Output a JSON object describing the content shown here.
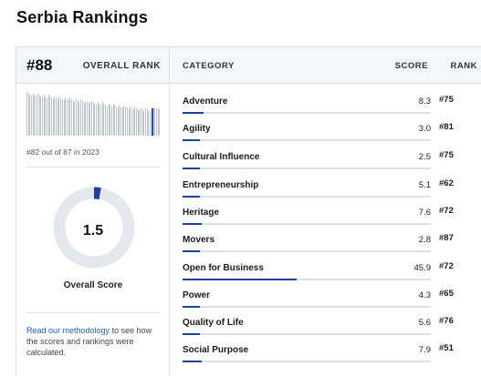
{
  "page": {
    "title": "Serbia Rankings"
  },
  "overall": {
    "rank": "#88",
    "rank_caption": "OVERALL RANK",
    "rank_of": "#82 out of 87 in 2023",
    "score": "1.5",
    "score_value": 1.5,
    "score_max": 100,
    "score_caption": "Overall Score",
    "histogram_highlight_index": 81,
    "histogram_count": 87
  },
  "methodology": {
    "link": "Read our methodology",
    "rest": " to see how the scores and rankings were calculated."
  },
  "table": {
    "headers": {
      "category": "CATEGORY",
      "score": "SCORE",
      "rank": "RANK"
    },
    "rows": [
      {
        "name": "Adventure",
        "score": "8.3",
        "score_value": 8.3,
        "rank": "#75"
      },
      {
        "name": "Agility",
        "score": "3.0",
        "score_value": 3.0,
        "rank": "#81"
      },
      {
        "name": "Cultural Influence",
        "score": "2.5",
        "score_value": 2.5,
        "rank": "#75"
      },
      {
        "name": "Entrepreneurship",
        "score": "5.1",
        "score_value": 5.1,
        "rank": "#62"
      },
      {
        "name": "Heritage",
        "score": "7.6",
        "score_value": 7.6,
        "rank": "#72"
      },
      {
        "name": "Movers",
        "score": "2.8",
        "score_value": 2.8,
        "rank": "#87"
      },
      {
        "name": "Open for Business",
        "score": "45.9",
        "score_value": 45.9,
        "rank": "#72"
      },
      {
        "name": "Power",
        "score": "4.3",
        "score_value": 4.3,
        "rank": "#65"
      },
      {
        "name": "Quality of Life",
        "score": "5.6",
        "score_value": 5.6,
        "rank": "#76"
      },
      {
        "name": "Social Purpose",
        "score": "7.9",
        "score_value": 7.9,
        "rank": "#51"
      }
    ]
  },
  "colors": {
    "accent": "#1f3fa5",
    "link": "#1f5fc0",
    "track": "#dde1e6",
    "donut_track": "#e4e7eb"
  }
}
